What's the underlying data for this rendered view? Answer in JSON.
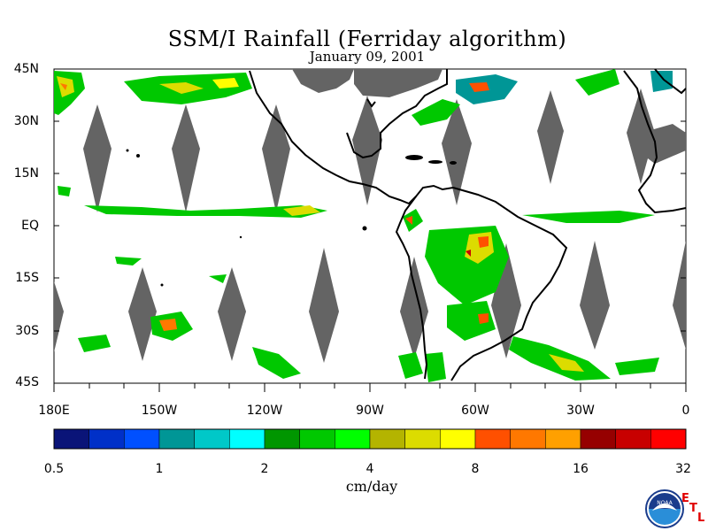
{
  "title": "SSM/I Rainfall (Ferriday algorithm)",
  "date": "January 09, 2001",
  "lat_labels": [
    "45N",
    "30N",
    "15N",
    "EQ",
    "15S",
    "30S",
    "45S"
  ],
  "lon_labels": [
    "180E",
    "150W",
    "120W",
    "90W",
    "60W",
    "30W",
    "0"
  ],
  "colorbar": {
    "tick_labels": [
      "0.5",
      "1",
      "2",
      "4",
      "8",
      "16",
      "32"
    ],
    "unit": "cm/day",
    "colors": [
      "#0a1478",
      "#0030c8",
      "#0050ff",
      "#009696",
      "#00c8c8",
      "#00ffff",
      "#009600",
      "#00c800",
      "#00ff00",
      "#b4b400",
      "#dcdc00",
      "#ffff00",
      "#ff5000",
      "#ff7800",
      "#ffa000",
      "#960000",
      "#c80000",
      "#ff0000"
    ]
  },
  "map": {
    "region": "Tropical Americas and Pacific",
    "lon_range": [
      "180E",
      "0"
    ],
    "lat_range": [
      "45S",
      "45N"
    ],
    "no_data_color": "#646464",
    "land_outline_color": "#000000"
  },
  "logo": {
    "noaa_text": "NOAA",
    "etl_letters": [
      "E",
      "T",
      "L"
    ]
  }
}
